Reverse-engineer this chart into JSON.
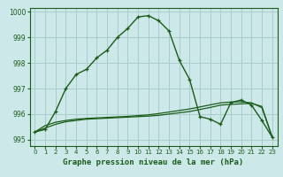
{
  "xlabel": "Graphe pression niveau de la mer (hPa)",
  "background_color": "#cce8e8",
  "grid_color": "#aacccc",
  "line_color": "#1a5c1a",
  "x": [
    0,
    1,
    2,
    3,
    4,
    5,
    6,
    7,
    8,
    9,
    10,
    11,
    12,
    13,
    14,
    15,
    16,
    17,
    18,
    19,
    20,
    21,
    22,
    23
  ],
  "y_main": [
    995.3,
    995.4,
    996.1,
    997.0,
    997.55,
    997.75,
    998.2,
    998.5,
    999.0,
    999.35,
    999.8,
    999.85,
    999.65,
    999.25,
    998.1,
    997.35,
    995.9,
    995.8,
    995.6,
    996.45,
    996.55,
    996.35,
    995.75,
    995.1
  ],
  "y_line2": [
    995.3,
    995.45,
    995.6,
    995.7,
    995.75,
    995.8,
    995.82,
    995.84,
    995.86,
    995.88,
    995.9,
    995.92,
    995.95,
    996.0,
    996.05,
    996.1,
    996.18,
    996.26,
    996.35,
    996.38,
    996.4,
    996.42,
    996.3,
    995.1
  ],
  "y_line3": [
    995.3,
    995.55,
    995.68,
    995.75,
    995.8,
    995.83,
    995.85,
    995.87,
    995.89,
    995.91,
    995.94,
    995.97,
    996.02,
    996.08,
    996.14,
    996.2,
    996.28,
    996.36,
    996.44,
    996.47,
    996.48,
    996.44,
    996.25,
    995.1
  ],
  "ylim": [
    994.75,
    1000.15
  ],
  "xlim": [
    -0.5,
    23.5
  ],
  "yticks": [
    995,
    996,
    997,
    998,
    999,
    1000
  ],
  "xticks": [
    0,
    1,
    2,
    3,
    4,
    5,
    6,
    7,
    8,
    9,
    10,
    11,
    12,
    13,
    14,
    15,
    16,
    17,
    18,
    19,
    20,
    21,
    22,
    23
  ]
}
